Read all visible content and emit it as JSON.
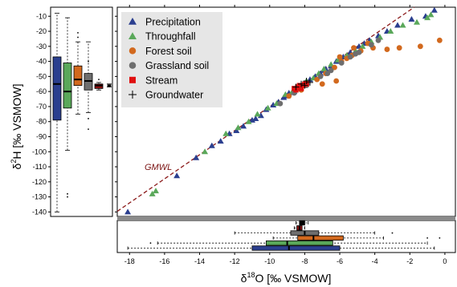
{
  "chart_data": {
    "type": "scatter",
    "xlabel_html": [
      "δ",
      "18",
      "O [‰ VSMOW]"
    ],
    "ylabel_html": [
      "δ",
      "2",
      "H [‰ VSMOW]"
    ],
    "xlim": [
      -18.7,
      0.6
    ],
    "ylim": [
      -143,
      -4
    ],
    "x_ticks": [
      -18,
      -16,
      -14,
      -12,
      -10,
      -8,
      -6,
      -4,
      -2,
      0
    ],
    "y_ticks": [
      -10,
      -20,
      -30,
      -40,
      -50,
      -60,
      -70,
      -80,
      -90,
      -100,
      -110,
      -120,
      -130,
      -140
    ],
    "gmwl": {
      "label": "GMWL",
      "slope": 8,
      "intercept": 10,
      "color": "#8b1a1a"
    },
    "legend": {
      "position": "top-left"
    },
    "series": [
      {
        "name": "Precipitation",
        "marker": "triangle",
        "color": "#2b3f8f",
        "points": [
          [
            -18.1,
            -140
          ],
          [
            -15.3,
            -116
          ],
          [
            -14.2,
            -104
          ],
          [
            -13.3,
            -96
          ],
          [
            -12.8,
            -93
          ],
          [
            -11.9,
            -86
          ],
          [
            -11.5,
            -83
          ],
          [
            -11.0,
            -79
          ],
          [
            -10.5,
            -76
          ],
          [
            -10.2,
            -72
          ],
          [
            -9.8,
            -69
          ],
          [
            -9.5,
            -67
          ],
          [
            -9.2,
            -64
          ],
          [
            -8.9,
            -61
          ],
          [
            -8.6,
            -60
          ],
          [
            -8.3,
            -57
          ],
          [
            -8.0,
            -55
          ],
          [
            -7.7,
            -52
          ],
          [
            -7.4,
            -50
          ],
          [
            -7.1,
            -48
          ],
          [
            -6.8,
            -45
          ],
          [
            -6.5,
            -43
          ],
          [
            -6.2,
            -40
          ],
          [
            -5.8,
            -37
          ],
          [
            -5.4,
            -34
          ],
          [
            -4.9,
            -30
          ],
          [
            -4.6,
            -28
          ],
          [
            -4.3,
            -26
          ],
          [
            -3.8,
            -23
          ],
          [
            -3.3,
            -20
          ],
          [
            -2.7,
            -16
          ],
          [
            -1.9,
            -12
          ],
          [
            -0.6,
            -6
          ],
          [
            -1.1,
            -10
          ],
          [
            -12.3,
            -88
          ],
          [
            -10.8,
            -78
          ],
          [
            -9.0,
            -63
          ],
          [
            -7.9,
            -54
          ],
          [
            -6.9,
            -46
          ]
        ]
      },
      {
        "name": "Throughfall",
        "marker": "triangle",
        "color": "#5aa85a",
        "points": [
          [
            -16.7,
            -128
          ],
          [
            -16.5,
            -126
          ],
          [
            -13.7,
            -100
          ],
          [
            -12.5,
            -88
          ],
          [
            -11.8,
            -84
          ],
          [
            -11.2,
            -80
          ],
          [
            -10.7,
            -75
          ],
          [
            -10.1,
            -71
          ],
          [
            -9.6,
            -68
          ],
          [
            -9.1,
            -62
          ],
          [
            -8.7,
            -60
          ],
          [
            -8.4,
            -58
          ],
          [
            -7.9,
            -53
          ],
          [
            -7.5,
            -51
          ],
          [
            -7.2,
            -48
          ],
          [
            -6.9,
            -45
          ],
          [
            -6.5,
            -42
          ],
          [
            -6.1,
            -39
          ],
          [
            -5.6,
            -36
          ],
          [
            -5.1,
            -33
          ],
          [
            -4.7,
            -30
          ],
          [
            -4.2,
            -27
          ],
          [
            -3.7,
            -24
          ],
          [
            -3.1,
            -20
          ],
          [
            -2.4,
            -16
          ],
          [
            -1.6,
            -14
          ],
          [
            -1.0,
            -11
          ],
          [
            -0.8,
            -9
          ]
        ]
      },
      {
        "name": "Forest soil",
        "marker": "circle",
        "color": "#d2691e",
        "points": [
          [
            -8.9,
            -63
          ],
          [
            -8.2,
            -59
          ],
          [
            -7.3,
            -52
          ],
          [
            -6.8,
            -48
          ],
          [
            -6.3,
            -44
          ],
          [
            -5.9,
            -40
          ],
          [
            -5.3,
            -36
          ],
          [
            -4.8,
            -33
          ],
          [
            -4.1,
            -31
          ],
          [
            -3.3,
            -32
          ],
          [
            -2.6,
            -31
          ],
          [
            -1.4,
            -30
          ],
          [
            -0.3,
            -26
          ],
          [
            -4.4,
            -28
          ],
          [
            -5.6,
            -38
          ],
          [
            -6.0,
            -37
          ],
          [
            -7.0,
            -55
          ],
          [
            -6.2,
            -53
          ],
          [
            -5.2,
            -31
          ]
        ]
      },
      {
        "name": "Grassland soil",
        "marker": "circle",
        "color": "#6e6e6e",
        "points": [
          [
            -9.4,
            -68
          ],
          [
            -8.6,
            -61
          ],
          [
            -7.9,
            -56
          ],
          [
            -7.1,
            -50
          ],
          [
            -6.5,
            -46
          ],
          [
            -5.9,
            -41
          ],
          [
            -5.4,
            -37
          ],
          [
            -4.9,
            -34
          ],
          [
            -4.2,
            -29
          ],
          [
            -3.8,
            -26
          ],
          [
            -6.7,
            -48
          ],
          [
            -5.1,
            -35
          ]
        ]
      },
      {
        "name": "Stream",
        "marker": "square",
        "color": "#e01010",
        "points": [
          [
            -8.6,
            -58
          ],
          [
            -8.4,
            -57
          ],
          [
            -8.3,
            -56
          ],
          [
            -8.1,
            -56
          ],
          [
            -8.0,
            -55
          ],
          [
            -7.9,
            -55
          ],
          [
            -8.5,
            -59
          ],
          [
            -8.2,
            -58
          ]
        ]
      },
      {
        "name": "Groundwater",
        "marker": "plus",
        "color": "#000000",
        "points": [
          [
            -8.5,
            -57
          ],
          [
            -8.2,
            -55
          ],
          [
            -7.9,
            -53
          ],
          [
            -7.7,
            -54
          ],
          [
            -8.0,
            -56
          ]
        ]
      }
    ],
    "boxplots_y": [
      {
        "name": "Precipitation",
        "color": "#2b3f8f",
        "whisker_low": -140,
        "q1": -79,
        "median": -55,
        "q3": -37,
        "whisker_high": -8,
        "outliers": []
      },
      {
        "name": "Throughfall",
        "color": "#5aa85a",
        "whisker_low": -99,
        "q1": -71,
        "median": -60,
        "q3": -41,
        "whisker_high": -11,
        "outliers": [
          -128,
          -130
        ]
      },
      {
        "name": "Forest soil",
        "color": "#d2691e",
        "whisker_low": -75,
        "q1": -56,
        "median": -52,
        "q3": -43,
        "whisker_high": -27,
        "outliers": [
          -21,
          -24
        ]
      },
      {
        "name": "Grassland soil",
        "color": "#6e6e6e",
        "whisker_low": -74,
        "q1": -59,
        "median": -53,
        "q3": -48,
        "whisker_high": -27,
        "outliers": [
          -78,
          -85,
          -40
        ]
      },
      {
        "name": "Stream",
        "color": "#8b1010",
        "whisker_low": -59,
        "q1": -58,
        "median": -56,
        "q3": -55,
        "whisker_high": -54,
        "outliers": [
          -52
        ]
      },
      {
        "name": "Groundwater",
        "color": "#000000",
        "whisker_low": -57,
        "q1": -56.5,
        "median": -56,
        "q3": -55.5,
        "whisker_high": -55,
        "outliers": []
      }
    ],
    "boxplots_x": [
      {
        "name": "Groundwater",
        "color": "#000000",
        "whisker_low": -8.5,
        "q1": -8.3,
        "median": -8.2,
        "q3": -8.0,
        "whisker_high": -7.8,
        "outliers": []
      },
      {
        "name": "Stream",
        "color": "#8b1010",
        "whisker_low": -8.6,
        "q1": -8.45,
        "median": -8.3,
        "q3": -8.15,
        "whisker_high": -8.0,
        "outliers": []
      },
      {
        "name": "Grassland soil",
        "color": "#6e6e6e",
        "whisker_low": -12.0,
        "q1": -8.8,
        "median": -8.0,
        "q3": -7.2,
        "whisker_high": -4.0,
        "outliers": [
          -3.0
        ]
      },
      {
        "name": "Forest soil",
        "color": "#d2691e",
        "whisker_low": -9.8,
        "q1": -8.4,
        "median": -7.5,
        "q3": -5.8,
        "whisker_high": -3.5,
        "outliers": [
          -1.0,
          -0.3
        ]
      },
      {
        "name": "Throughfall",
        "color": "#5aa85a",
        "whisker_low": -16.4,
        "q1": -10.2,
        "median": -9.0,
        "q3": -6.4,
        "whisker_high": -1.0,
        "outliers": [
          -16.8
        ]
      },
      {
        "name": "Precipitation",
        "color": "#2b3f8f",
        "whisker_low": -18.1,
        "q1": -11.0,
        "median": -8.9,
        "q3": -6.0,
        "whisker_high": -0.6,
        "outliers": []
      }
    ]
  }
}
